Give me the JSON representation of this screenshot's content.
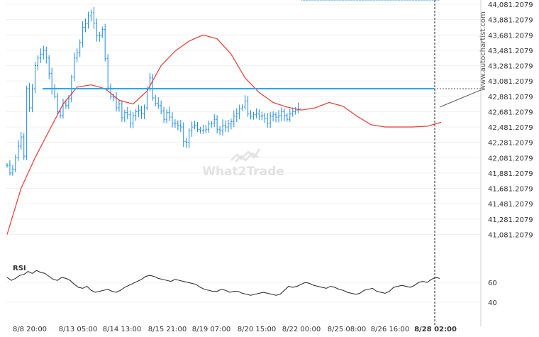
{
  "chart_data": {
    "type": "line",
    "price_ticks": [
      "44,081.2079",
      "43,881.2079",
      "43,681.2079",
      "43,481.2079",
      "43,281.2079",
      "43,081.2079",
      "42,881.2079",
      "42,681.2079",
      "42,481.2079",
      "42,281.2079",
      "42,081.2079",
      "41,881.2079",
      "41,681.2079",
      "41,481.2079",
      "41,281.2079",
      "41,081.2079"
    ],
    "price_range": [
      40881.2079,
      44081.2079
    ],
    "x_labels": [
      "8/8 20:00",
      "8/13 05:00",
      "8/14 13:00",
      "8/15 21:00",
      "8/19 07:00",
      "8/20 15:00",
      "8/22 00:00",
      "8/25 08:00",
      "8/26 16:00",
      "8/28 02:00"
    ],
    "current_time_label": "8/28 02:00",
    "resistance_level": 42981.2079,
    "series": [
      {
        "type": "ohlc",
        "color": "#1e88e5",
        "close_x": [
          0,
          2,
          4,
          6,
          8,
          10,
          12,
          14,
          16,
          18,
          20,
          22,
          24,
          26,
          28,
          30,
          32,
          34,
          36,
          38,
          40,
          42,
          44,
          46,
          48,
          50,
          52,
          54,
          56,
          58,
          60,
          62,
          64,
          66,
          68,
          70,
          72,
          74,
          76,
          78,
          80,
          82,
          84,
          86,
          88,
          90,
          92,
          94,
          96,
          98,
          100,
          102,
          104,
          106,
          108,
          110,
          112,
          114,
          116,
          118,
          120,
          122,
          124,
          126,
          128,
          130,
          132,
          134,
          136,
          138,
          140,
          142,
          144,
          146,
          148,
          150,
          152,
          154,
          156,
          158,
          160,
          162,
          164,
          166,
          168,
          170,
          172,
          174,
          176,
          178,
          180,
          182,
          184,
          186,
          188,
          190,
          192,
          194,
          196,
          198,
          200,
          202,
          204,
          206,
          208,
          210,
          212,
          214,
          216,
          218,
          220,
          222,
          224,
          226,
          228,
          230,
          232,
          234,
          236,
          238,
          240,
          242,
          244,
          246,
          248,
          250,
          252,
          254,
          256,
          258,
          260,
          262,
          264,
          266,
          268,
          270,
          272,
          274,
          276,
          278,
          280,
          282,
          284,
          286,
          288,
          290,
          292,
          294,
          296,
          298,
          300,
          302,
          304,
          306,
          308
        ],
        "close": [
          41981,
          41881,
          41931,
          42081,
          42231,
          42351,
          42101,
          42981,
          42731,
          42981,
          43281,
          43381,
          43431,
          43481,
          43381,
          43181,
          42981,
          42881,
          42681,
          42631,
          42781,
          42761,
          42851,
          43131,
          43381,
          43451,
          43581,
          43781,
          43831,
          43931,
          43971,
          43831,
          43671,
          43671,
          43751,
          43371,
          43001,
          42881,
          42861,
          42731,
          42781,
          42601,
          42671,
          42641,
          42531,
          42631,
          42681,
          42701,
          42661,
          42731,
          42981,
          43121,
          42861,
          42791,
          42761,
          42691,
          42581,
          42671,
          42611,
          42531,
          42531,
          42501,
          42481,
          42291,
          42281,
          42431,
          42481,
          42501,
          42451,
          42431,
          42441,
          42451,
          42521,
          42531,
          42581,
          42451,
          42431,
          42501,
          42481,
          42521,
          42551,
          42621,
          42661,
          42721,
          42741,
          42821,
          42651,
          42621,
          42641,
          42651,
          42621,
          42631,
          42591,
          42531,
          42621,
          42641,
          42611,
          42631,
          42681,
          42631,
          42581,
          42651,
          42681,
          42701,
          42721
        ]
      },
      {
        "name": "",
        "type": "moving-average",
        "color": "#e53935",
        "x": [
          0,
          10,
          20,
          30,
          40,
          50,
          60,
          70,
          80,
          90,
          100,
          110,
          120,
          130,
          140,
          150,
          160,
          170,
          180,
          190,
          200,
          210,
          220,
          230,
          240,
          250,
          260,
          270,
          280,
          290,
          300,
          310
        ],
        "values": [
          41081,
          41681,
          42081,
          42431,
          42781,
          43001,
          43031,
          42981,
          42831,
          42781,
          42951,
          43281,
          43471,
          43601,
          43681,
          43631,
          43431,
          43121,
          42931,
          42801,
          42741,
          42701,
          42731,
          42801,
          42751,
          42621,
          42511,
          42481,
          42481,
          42481,
          42491,
          42541
        ]
      }
    ],
    "rsi": {
      "label": "RSI",
      "ticks": [
        "60",
        "40"
      ],
      "range": [
        30,
        80
      ],
      "x": [
        0,
        3,
        6,
        9,
        12,
        15,
        18,
        21,
        24,
        27,
        30,
        33,
        36,
        39,
        42,
        45,
        48,
        51,
        54,
        57,
        60,
        63,
        66,
        69,
        72,
        75,
        78,
        81,
        84,
        87,
        90,
        93,
        96,
        99,
        102,
        105,
        108,
        111,
        114,
        117,
        120,
        123,
        126,
        129,
        132,
        135,
        138,
        141,
        144,
        147,
        150,
        153,
        156,
        159,
        162,
        165,
        168,
        171,
        174,
        177,
        180,
        183,
        186,
        189,
        192,
        195,
        198,
        201,
        204,
        207,
        210,
        213,
        216,
        219,
        222,
        225,
        228,
        231,
        234,
        237,
        240,
        243,
        246,
        249,
        252,
        255,
        258,
        261,
        264,
        267,
        270,
        273,
        276,
        279,
        282,
        285,
        288,
        291,
        294,
        297,
        300,
        303,
        306,
        309
      ],
      "values": [
        65,
        62,
        64,
        67,
        68,
        71,
        69,
        72,
        70,
        69,
        66,
        63,
        62,
        65,
        64,
        62,
        58,
        55,
        54,
        56,
        52,
        50,
        51,
        52,
        53,
        51,
        50,
        52,
        55,
        57,
        59,
        61,
        63,
        66,
        67,
        66,
        64,
        63,
        62,
        61,
        63,
        62,
        61,
        60,
        59,
        58,
        55,
        53,
        52,
        51,
        51,
        53,
        52,
        50,
        51,
        51,
        49,
        48,
        47,
        48,
        49,
        50,
        49,
        48,
        47,
        48,
        52,
        56,
        55,
        56,
        58,
        60,
        59,
        57,
        56,
        55,
        54,
        56,
        55,
        53,
        52,
        50,
        49,
        48,
        49,
        52,
        53,
        54,
        51,
        50,
        49,
        51,
        55,
        56,
        57,
        56,
        55,
        57,
        60,
        61,
        60,
        63,
        65,
        64
      ]
    }
  },
  "watermark": "What2Trade",
  "site": "www.autochartist.com",
  "colors": {
    "candles": "#1e88e5",
    "ma": "#e53935",
    "level": "#29a9e8",
    "grid": "#f0f0f0",
    "axis": "#cccccc"
  }
}
